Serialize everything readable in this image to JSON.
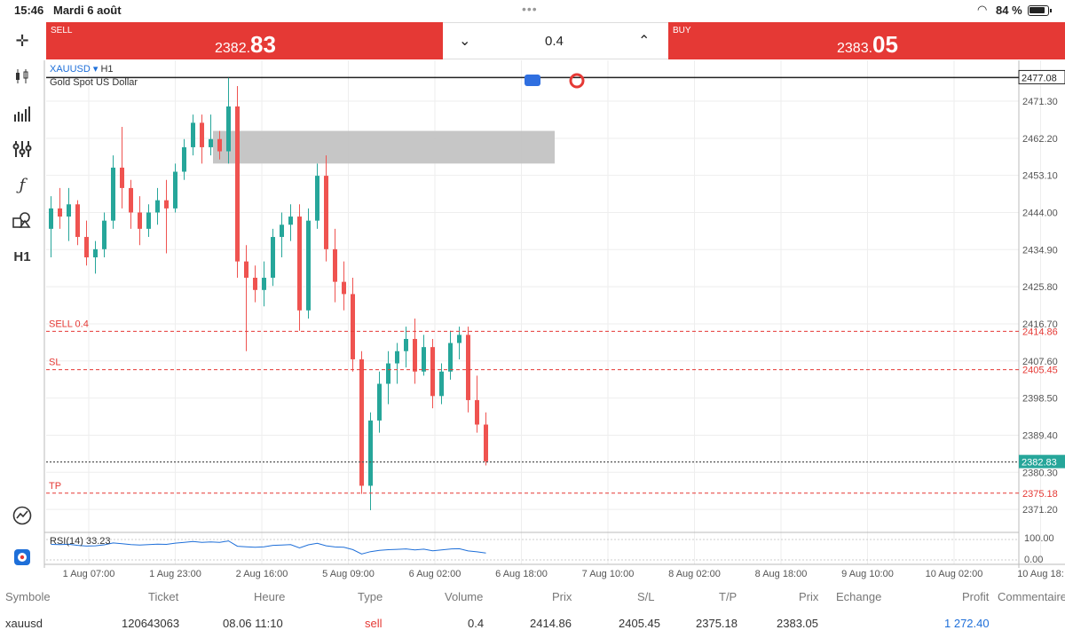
{
  "status": {
    "time": "15:46",
    "date": "Mardi 6 août",
    "battery": "84 %"
  },
  "trade": {
    "sell_label": "SELL",
    "sell_price_small": "2382.",
    "sell_price_big": "83",
    "buy_label": "BUY",
    "buy_price_small": "2383.",
    "buy_price_big": "05",
    "volume": "0.4"
  },
  "sidebar": {
    "items": [
      {
        "name": "crosshair-icon",
        "glyph": "✛"
      },
      {
        "name": "candlestick-icon",
        "glyph": "⫶"
      },
      {
        "name": "bar-chart-icon",
        "glyph": "▥"
      },
      {
        "name": "indicators-icon",
        "glyph": "⫯"
      },
      {
        "name": "function-icon",
        "glyph": "ƒ"
      },
      {
        "name": "objects-icon",
        "glyph": "⧋"
      },
      {
        "name": "timeframe-icon",
        "glyph": "H1"
      }
    ]
  },
  "chart": {
    "symbol": "XAUUSD",
    "timeframe": "H1",
    "description": "Gold Spot US Dollar",
    "rsi_label": "RSI(14) 33.23",
    "price_ticks": [
      "2471.30",
      "2462.20",
      "2453.10",
      "2444.00",
      "2434.90",
      "2425.80",
      "2416.70",
      "2407.60",
      "2398.50",
      "2389.40",
      "2380.30",
      "2371.20"
    ],
    "top_price": "2477.08",
    "current_price": "2382.83",
    "order_lines": [
      {
        "label": "SELL 0.4",
        "price": "2414.86"
      },
      {
        "label": "SL",
        "price": "2405.45"
      },
      {
        "label": "TP",
        "price": "2375.18"
      }
    ],
    "rsi_ticks": [
      "100.00",
      "0.00"
    ],
    "time_ticks": [
      "1 Aug 07:00",
      "1 Aug 23:00",
      "2 Aug 16:00",
      "5 Aug 09:00",
      "6 Aug 02:00",
      "6 Aug 18:00",
      "7 Aug 10:00",
      "8 Aug 02:00",
      "8 Aug 18:00",
      "9 Aug 10:00",
      "10 Aug 02:00",
      "10 Aug 18:"
    ],
    "colors": {
      "up": "#26a69a",
      "down": "#ef5350",
      "order": "#e53935",
      "zone": "#c0c0c0"
    }
  },
  "chart_data": {
    "type": "candlestick",
    "series": [
      {
        "o": 2440,
        "h": 2448,
        "l": 2433,
        "c": 2445
      },
      {
        "o": 2445,
        "h": 2450,
        "l": 2440,
        "c": 2443
      },
      {
        "o": 2443,
        "h": 2450,
        "l": 2437,
        "c": 2446
      },
      {
        "o": 2446,
        "h": 2447,
        "l": 2436,
        "c": 2438
      },
      {
        "o": 2438,
        "h": 2442,
        "l": 2431,
        "c": 2433
      },
      {
        "o": 2433,
        "h": 2437,
        "l": 2429,
        "c": 2435
      },
      {
        "o": 2435,
        "h": 2444,
        "l": 2433,
        "c": 2442
      },
      {
        "o": 2442,
        "h": 2458,
        "l": 2440,
        "c": 2455
      },
      {
        "o": 2455,
        "h": 2465,
        "l": 2445,
        "c": 2450
      },
      {
        "o": 2450,
        "h": 2452,
        "l": 2440,
        "c": 2444
      },
      {
        "o": 2444,
        "h": 2448,
        "l": 2436,
        "c": 2440
      },
      {
        "o": 2440,
        "h": 2446,
        "l": 2438,
        "c": 2444
      },
      {
        "o": 2444,
        "h": 2450,
        "l": 2441,
        "c": 2447
      },
      {
        "o": 2447,
        "h": 2452,
        "l": 2434,
        "c": 2445
      },
      {
        "o": 2445,
        "h": 2456,
        "l": 2444,
        "c": 2454
      },
      {
        "o": 2454,
        "h": 2462,
        "l": 2452,
        "c": 2460
      },
      {
        "o": 2460,
        "h": 2468,
        "l": 2458,
        "c": 2466
      },
      {
        "o": 2466,
        "h": 2468,
        "l": 2456,
        "c": 2460
      },
      {
        "o": 2460,
        "h": 2468,
        "l": 2458,
        "c": 2462
      },
      {
        "o": 2462,
        "h": 2464,
        "l": 2457,
        "c": 2459
      },
      {
        "o": 2459,
        "h": 2477,
        "l": 2456,
        "c": 2470
      },
      {
        "o": 2470,
        "h": 2475,
        "l": 2428,
        "c": 2432
      },
      {
        "o": 2432,
        "h": 2436,
        "l": 2410,
        "c": 2428
      },
      {
        "o": 2428,
        "h": 2431,
        "l": 2422,
        "c": 2425
      },
      {
        "o": 2425,
        "h": 2432,
        "l": 2421,
        "c": 2428
      },
      {
        "o": 2428,
        "h": 2440,
        "l": 2426,
        "c": 2438
      },
      {
        "o": 2438,
        "h": 2444,
        "l": 2433,
        "c": 2441
      },
      {
        "o": 2441,
        "h": 2446,
        "l": 2437,
        "c": 2443
      },
      {
        "o": 2443,
        "h": 2446,
        "l": 2415,
        "c": 2420
      },
      {
        "o": 2420,
        "h": 2445,
        "l": 2418,
        "c": 2442
      },
      {
        "o": 2442,
        "h": 2456,
        "l": 2440,
        "c": 2453
      },
      {
        "o": 2453,
        "h": 2458,
        "l": 2432,
        "c": 2435
      },
      {
        "o": 2435,
        "h": 2440,
        "l": 2422,
        "c": 2427
      },
      {
        "o": 2427,
        "h": 2432,
        "l": 2420,
        "c": 2424
      },
      {
        "o": 2424,
        "h": 2428,
        "l": 2405,
        "c": 2408
      },
      {
        "o": 2408,
        "h": 2410,
        "l": 2375,
        "c": 2377
      },
      {
        "o": 2377,
        "h": 2395,
        "l": 2371,
        "c": 2393
      },
      {
        "o": 2393,
        "h": 2405,
        "l": 2390,
        "c": 2402
      },
      {
        "o": 2402,
        "h": 2410,
        "l": 2397,
        "c": 2407
      },
      {
        "o": 2407,
        "h": 2412,
        "l": 2402,
        "c": 2410
      },
      {
        "o": 2410,
        "h": 2416,
        "l": 2406,
        "c": 2413
      },
      {
        "o": 2413,
        "h": 2418,
        "l": 2402,
        "c": 2405
      },
      {
        "o": 2405,
        "h": 2414,
        "l": 2404,
        "c": 2411
      },
      {
        "o": 2411,
        "h": 2413,
        "l": 2396,
        "c": 2399
      },
      {
        "o": 2399,
        "h": 2407,
        "l": 2397,
        "c": 2405
      },
      {
        "o": 2405,
        "h": 2415,
        "l": 2403,
        "c": 2412
      },
      {
        "o": 2412,
        "h": 2416,
        "l": 2408,
        "c": 2414
      },
      {
        "o": 2414,
        "h": 2416,
        "l": 2395,
        "c": 2398
      },
      {
        "o": 2398,
        "h": 2404,
        "l": 2390,
        "c": 2392
      },
      {
        "o": 2392,
        "h": 2395,
        "l": 2382,
        "c": 2383
      }
    ],
    "zone": {
      "price_high": 2464,
      "price_low": 2456
    },
    "ylim": [
      2366,
      2480
    ]
  },
  "table": {
    "headers": [
      "Symbole",
      "Ticket",
      "Heure",
      "Type",
      "Volume",
      "Prix",
      "S/L",
      "T/P",
      "Prix",
      "Echange",
      "Profit",
      "Commentaire"
    ],
    "row": [
      "xauusd",
      "120643063",
      "08.06 11:10",
      "sell",
      "0.4",
      "2414.86",
      "2405.45",
      "2375.18",
      "2383.05",
      "",
      "1 272.40",
      ""
    ]
  }
}
